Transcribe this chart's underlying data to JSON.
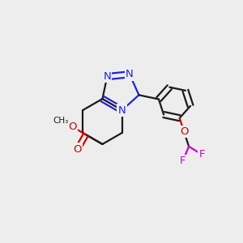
{
  "bg_color": "#ededee",
  "bond_color": "#1a1a1a",
  "nitrogen_color": "#2222dd",
  "oxygen_color": "#cc0000",
  "fluorine_color": "#cc00cc",
  "bond_width": 1.6,
  "dbo": 0.012,
  "figsize": [
    3.0,
    3.0
  ],
  "dpi": 100,
  "xlim": [
    0.0,
    1.0
  ],
  "ylim": [
    0.0,
    1.0
  ]
}
